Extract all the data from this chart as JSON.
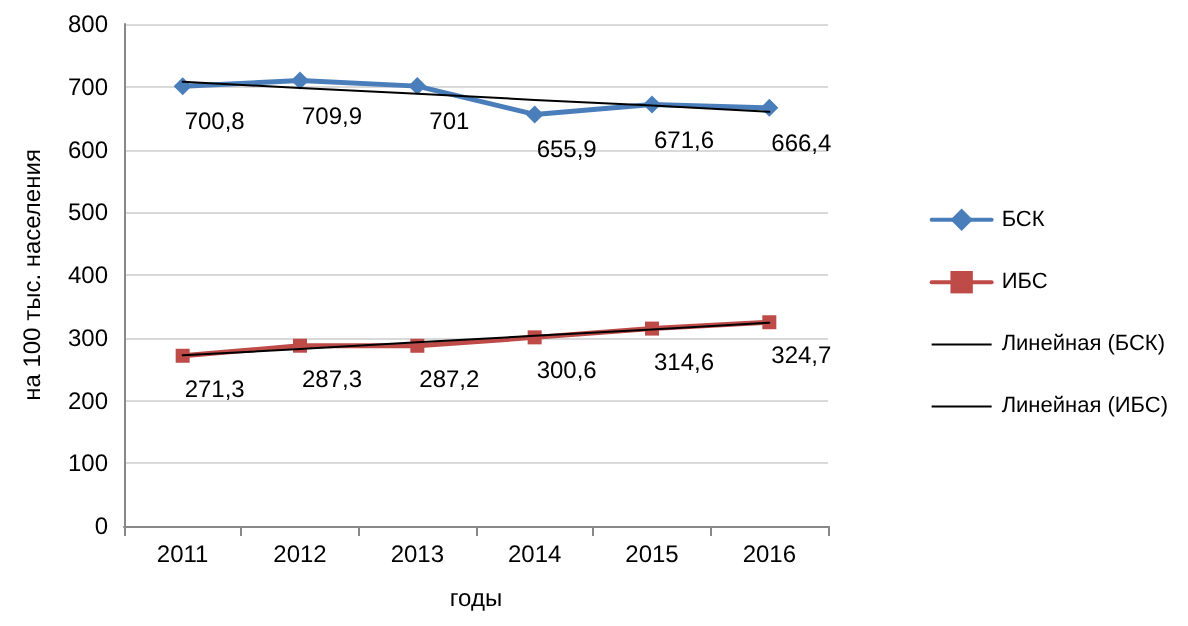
{
  "chart_data": {
    "type": "line",
    "xlabel": "годы",
    "ylabel": "на 100 тыс. населения",
    "categories": [
      "2011",
      "2012",
      "2013",
      "2014",
      "2015",
      "2016"
    ],
    "series": [
      {
        "name": "БСК",
        "color": "#4a7ebb",
        "marker": "diamond",
        "values": [
          700.8,
          709.9,
          701,
          655.9,
          671.6,
          666.4
        ],
        "value_labels": [
          "700,8",
          "709,9",
          "701",
          "655,9",
          "671,6",
          "666,4"
        ]
      },
      {
        "name": "ИБС",
        "color": "#be4b48",
        "marker": "square",
        "values": [
          271.3,
          287.3,
          287.2,
          300.6,
          314.6,
          324.7
        ],
        "value_labels": [
          "271,3",
          "287,3",
          "287,2",
          "300,6",
          "314,6",
          "324,7"
        ]
      },
      {
        "name": "Линейная (БСК)",
        "color": "#000000",
        "marker": "none",
        "values": [
          708,
          698,
          689,
          679,
          670,
          660
        ]
      },
      {
        "name": "Линейная (ИБС)",
        "color": "#000000",
        "marker": "none",
        "values": [
          272,
          282,
          293,
          303,
          313,
          324
        ]
      }
    ],
    "ylim": [
      0,
      800
    ],
    "yticks": [
      0,
      100,
      200,
      300,
      400,
      500,
      600,
      700,
      800
    ],
    "grid": "y",
    "legend": "right"
  }
}
